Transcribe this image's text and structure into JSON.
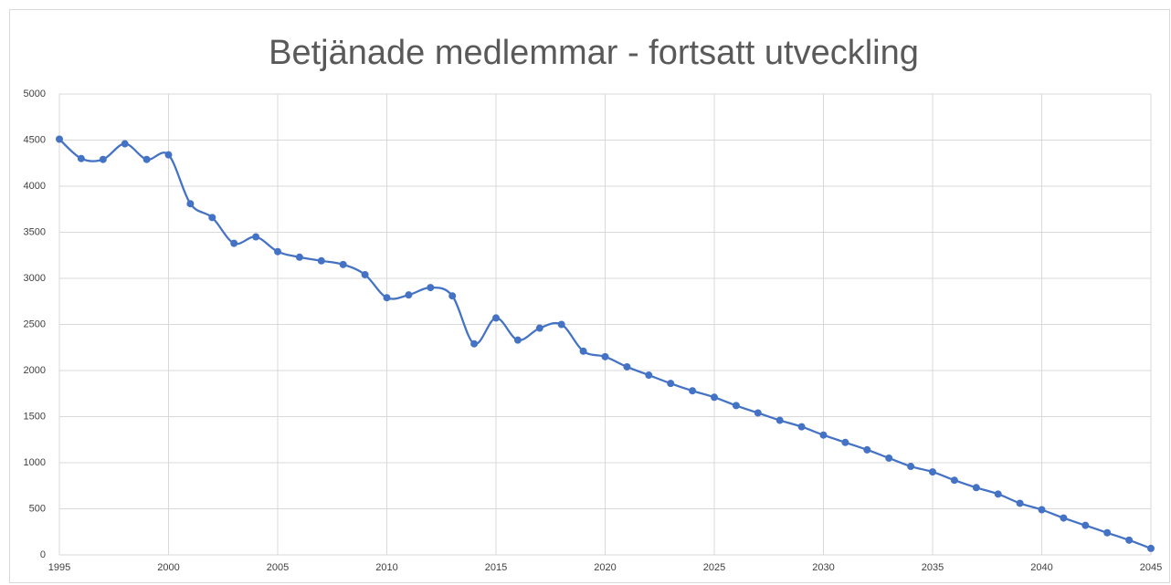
{
  "chart_data": {
    "type": "line",
    "title": "Betjänade medlemmar - fortsatt utveckling",
    "x": [
      1995,
      1996,
      1997,
      1998,
      1999,
      2000,
      2001,
      2002,
      2003,
      2004,
      2005,
      2006,
      2007,
      2008,
      2009,
      2010,
      2011,
      2012,
      2013,
      2014,
      2015,
      2016,
      2017,
      2018,
      2019,
      2020,
      2021,
      2022,
      2023,
      2024,
      2025,
      2026,
      2027,
      2028,
      2029,
      2030,
      2031,
      2032,
      2033,
      2034,
      2035,
      2036,
      2037,
      2038,
      2039,
      2040,
      2041,
      2042,
      2043,
      2044,
      2045
    ],
    "series": [
      {
        "name": "Betjänade medlemmar",
        "color": "#4472c4",
        "values": [
          4510,
          4300,
          4290,
          4460,
          4290,
          4340,
          3810,
          3660,
          3380,
          3450,
          3290,
          3230,
          3190,
          3150,
          3040,
          2790,
          2820,
          2900,
          2810,
          2290,
          2570,
          2330,
          2460,
          2500,
          2210,
          2150,
          2040,
          1950,
          1860,
          1780,
          1710,
          1620,
          1540,
          1460,
          1390,
          1300,
          1220,
          1140,
          1050,
          960,
          900,
          810,
          730,
          660,
          560,
          490,
          400,
          320,
          240,
          160,
          70
        ]
      }
    ],
    "xlim": [
      1995,
      2045
    ],
    "xticks": [
      1995,
      2000,
      2005,
      2010,
      2015,
      2020,
      2025,
      2030,
      2035,
      2040,
      2045
    ],
    "ylim": [
      0,
      5000
    ],
    "yticks": [
      0,
      500,
      1000,
      1500,
      2000,
      2500,
      3000,
      3500,
      4000,
      4500,
      5000
    ],
    "grid": true,
    "smooth": true
  }
}
